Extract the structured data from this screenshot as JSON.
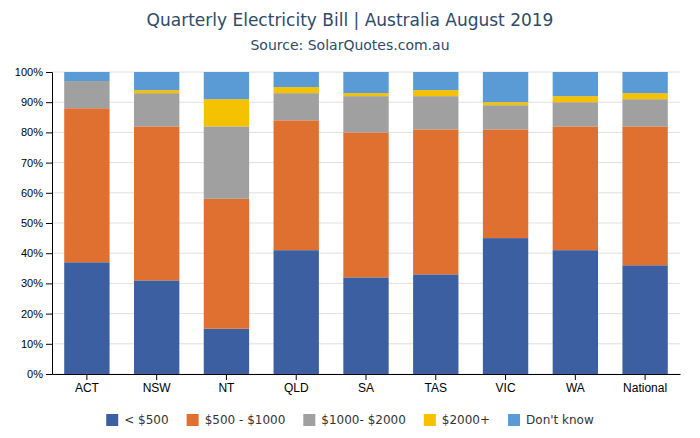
{
  "chart_data": {
    "type": "bar",
    "stacked": true,
    "title": "Quarterly Electricity Bill | Australia August 2019",
    "subtitle": "Source: SolarQuotes.com.au",
    "categories": [
      "ACT",
      "NSW",
      "NT",
      "QLD",
      "SA",
      "TAS",
      "VIC",
      "WA",
      "National"
    ],
    "series": [
      {
        "name": "< $500",
        "color": "#3B5FA0",
        "values": [
          37,
          31,
          15,
          41,
          32,
          33,
          45,
          41,
          36
        ]
      },
      {
        "name": "$500 - $1000",
        "color": "#E07030",
        "values": [
          51,
          51,
          43,
          43,
          48,
          48,
          36,
          41,
          46
        ]
      },
      {
        "name": "$1000- $2000",
        "color": "#A0A0A0",
        "values": [
          9,
          11,
          24,
          9,
          12,
          11,
          8,
          8,
          9
        ]
      },
      {
        "name": "$2000+",
        "color": "#F5C200",
        "values": [
          0,
          1,
          9,
          2,
          1,
          2,
          1,
          2,
          2
        ]
      },
      {
        "name": "Don't know",
        "color": "#5B9BD5",
        "values": [
          3,
          6,
          9,
          5,
          7,
          6,
          10,
          8,
          7
        ]
      }
    ],
    "ylim": [
      0,
      100
    ],
    "yticks": [
      {
        "value": 0,
        "label": "0%"
      },
      {
        "value": 10,
        "label": "10%"
      },
      {
        "value": 20,
        "label": "20%"
      },
      {
        "value": 30,
        "label": "30%"
      },
      {
        "value": 40,
        "label": "40%"
      },
      {
        "value": 50,
        "label": "50%"
      },
      {
        "value": 60,
        "label": "60%"
      },
      {
        "value": 70,
        "label": "70%"
      },
      {
        "value": 80,
        "label": "80%"
      },
      {
        "value": 90,
        "label": "90%"
      },
      {
        "value": 100,
        "label": "100%"
      }
    ],
    "grid": true,
    "legend": "bottom"
  }
}
